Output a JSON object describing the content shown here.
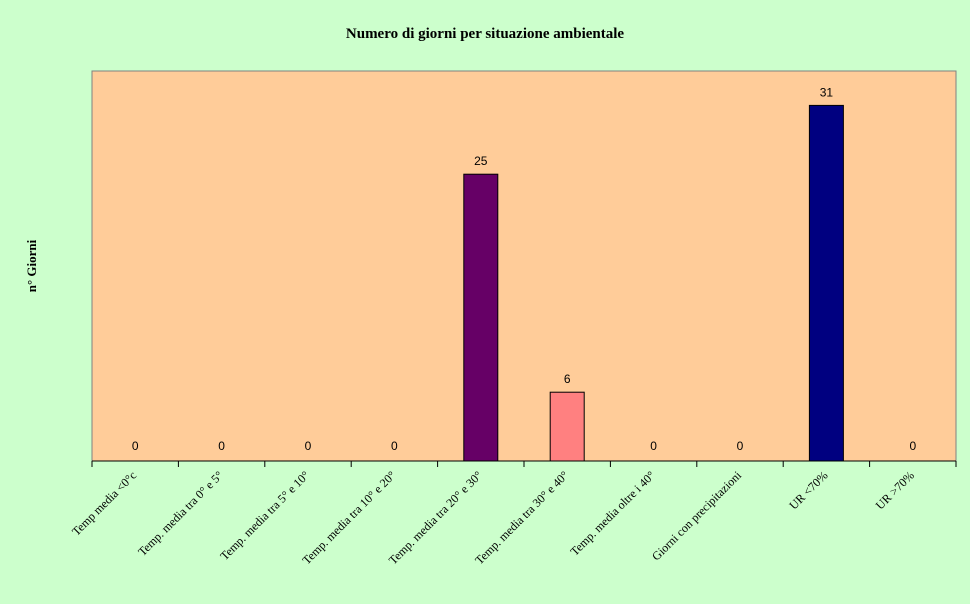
{
  "chart_data": {
    "type": "bar",
    "title": "Numero di giorni per situazione ambientale",
    "xlabel": "",
    "ylabel": "n° Giorni",
    "ylim": [
      0,
      34
    ],
    "grid": false,
    "legend": "none",
    "categories": [
      "Temp media <0°c",
      "Temp. media tra 0° e 5°",
      "Temp. media tra 5° e 10°",
      "Temp. media tra 10° e 20°",
      "Temp. media tra 20° e 30°",
      "Temp. media tra 30° e 40°",
      "Temp. media oltre i 40°",
      "Giorni con precipitazioni",
      "UR <70%",
      "UR >70%"
    ],
    "values": [
      0,
      0,
      0,
      0,
      25,
      6,
      0,
      0,
      31,
      0
    ],
    "bar_colors": [
      "#000080",
      "#000080",
      "#000080",
      "#000080",
      "#660066",
      "#FF8080",
      "#000080",
      "#000080",
      "#000080",
      "#000080"
    ],
    "colors": {
      "background": "#CCFFCC",
      "plot_area": "#FFCC99",
      "axis": "#000000"
    }
  }
}
